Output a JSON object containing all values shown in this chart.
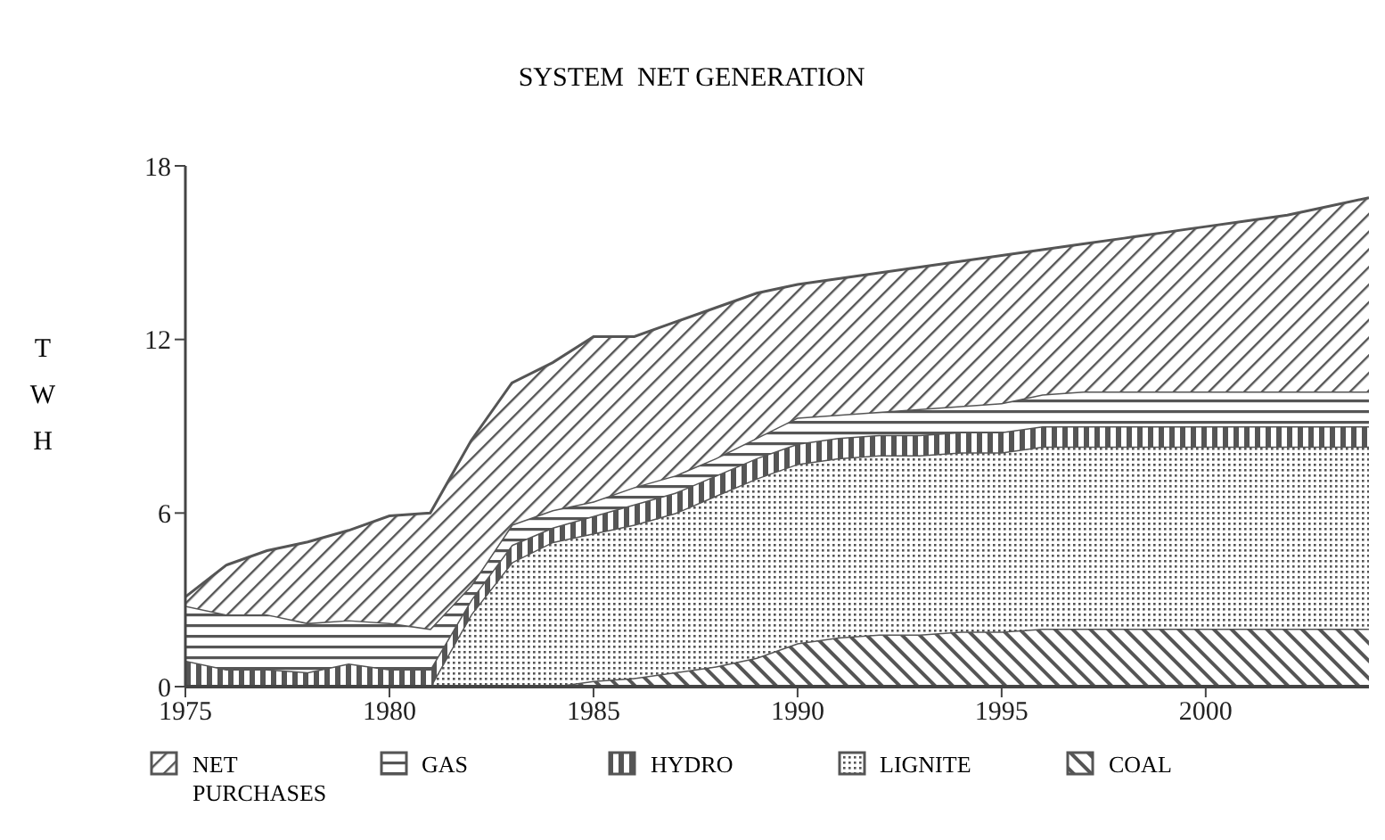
{
  "chart_data": {
    "type": "area",
    "title": "SYSTEM  NET GENERATION",
    "ylabel": "TWH",
    "stacked": true,
    "legend": "bottom",
    "x": [
      1975,
      1976,
      1977,
      1978,
      1979,
      1980,
      1981,
      1982,
      1983,
      1984,
      1985,
      1986,
      1987,
      1988,
      1989,
      1990,
      1991,
      1992,
      1993,
      1994,
      1995,
      1996,
      1997,
      1998,
      1999,
      2000,
      2001,
      2002,
      2003,
      2004
    ],
    "xlim": [
      1975,
      2004
    ],
    "xticks": [
      1975,
      1980,
      1985,
      1990,
      1995,
      2000
    ],
    "ylim": [
      0,
      18
    ],
    "yticks": [
      0,
      6,
      12,
      18
    ],
    "series": [
      {
        "name": "COAL",
        "color": "#555555",
        "values": [
          0,
          0,
          0,
          0,
          0,
          0,
          0,
          0,
          0,
          0,
          0.2,
          0.3,
          0.5,
          0.7,
          1.0,
          1.5,
          1.7,
          1.8,
          1.8,
          1.9,
          1.9,
          2.0,
          2.0,
          2.0,
          2.0,
          2.0,
          2.0,
          2.0,
          2.0,
          2.0
        ]
      },
      {
        "name": "LIGNITE",
        "color": "#555555",
        "values": [
          0,
          0,
          0,
          0,
          0,
          0,
          0,
          2.5,
          4.3,
          5.0,
          5.1,
          5.3,
          5.5,
          5.9,
          6.2,
          6.2,
          6.2,
          6.2,
          6.2,
          6.2,
          6.2,
          6.3,
          6.3,
          6.3,
          6.3,
          6.3,
          6.3,
          6.3,
          6.3,
          6.3
        ]
      },
      {
        "name": "HYDRO",
        "color": "#555555",
        "values": [
          0.9,
          0.6,
          0.6,
          0.5,
          0.8,
          0.6,
          0.6,
          0.5,
          0.6,
          0.5,
          0.6,
          0.7,
          0.7,
          0.7,
          0.7,
          0.7,
          0.7,
          0.7,
          0.7,
          0.7,
          0.7,
          0.7,
          0.7,
          0.7,
          0.7,
          0.7,
          0.7,
          0.7,
          0.7,
          0.7
        ]
      },
      {
        "name": "GAS",
        "color": "#555555",
        "values": [
          1.9,
          1.9,
          1.9,
          1.7,
          1.5,
          1.6,
          1.4,
          0.5,
          0.7,
          0.6,
          0.5,
          0.6,
          0.6,
          0.6,
          0.7,
          0.9,
          0.8,
          0.8,
          0.9,
          0.9,
          1.0,
          1.1,
          1.2,
          1.2,
          1.2,
          1.2,
          1.2,
          1.2,
          1.2,
          1.2
        ]
      },
      {
        "name": "NET PURCHASES",
        "color": "#555555",
        "values": [
          0.3,
          1.7,
          2.2,
          2.8,
          3.1,
          3.7,
          4.0,
          5.0,
          4.9,
          5.1,
          5.7,
          5.2,
          5.3,
          5.2,
          5.0,
          4.6,
          4.7,
          4.8,
          4.9,
          5.0,
          5.1,
          5.0,
          5.1,
          5.3,
          5.5,
          5.7,
          5.9,
          6.1,
          6.4,
          6.7
        ]
      }
    ]
  }
}
